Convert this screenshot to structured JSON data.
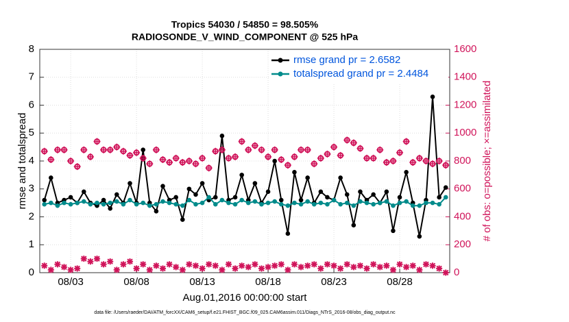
{
  "chart_data": {
    "type": "line",
    "title": "Tropics 54030 / 54850 = 98.505%",
    "subtitle": "RADIOSONDE_V_WIND_COMPONENT @ 525 hPa",
    "ylabel": "rmse and totalspread",
    "y2label": "# of obs: o=possible; ×=assimilated",
    "xlabel": "Aug.01,2016 00:00:00 start",
    "footnote": "data file: /Users/raeder/DAI/ATM_forcXX/CAM6_setup/f.e21.FHIST_BGC.f09_025.CAM6assim.011/Diags_NTrS_2016-08/obs_diag_output.nc",
    "legend": "upper right",
    "x": [
      0,
      0.5,
      1,
      1.5,
      2,
      2.5,
      3,
      3.5,
      4,
      4.5,
      5,
      5.5,
      6,
      6.5,
      7,
      7.5,
      8,
      8.5,
      9,
      9.5,
      10,
      10.5,
      11,
      11.5,
      12,
      12.5,
      13,
      13.5,
      14,
      14.5,
      15,
      15.5,
      16,
      16.5,
      17,
      17.5,
      18,
      18.5,
      19,
      19.5,
      20,
      20.5,
      21,
      21.5,
      22,
      22.5,
      23,
      23.5,
      24,
      24.5,
      25,
      25.5,
      26,
      26.5,
      27,
      27.5,
      28,
      28.5,
      29,
      29.5,
      30,
      30.5
    ],
    "xlim": [
      -0.35,
      30.8
    ],
    "xticks": [
      {
        "value": 2,
        "label": "08/03"
      },
      {
        "value": 7,
        "label": "08/08"
      },
      {
        "value": 12,
        "label": "08/13"
      },
      {
        "value": 17,
        "label": "08/18"
      },
      {
        "value": 22,
        "label": "08/23"
      },
      {
        "value": 27,
        "label": "08/28"
      }
    ],
    "ylim": [
      0,
      8
    ],
    "yticks": [
      0,
      1,
      2,
      3,
      4,
      5,
      6,
      7,
      8
    ],
    "y2lim": [
      0,
      1600
    ],
    "y2ticks": [
      0,
      200,
      400,
      600,
      800,
      1000,
      1200,
      1400,
      1600
    ],
    "series": [
      {
        "name": "rmse grand pr = 2.6582",
        "color": "#000000",
        "marker": "o",
        "line": true,
        "values": [
          2.6,
          3.4,
          2.5,
          2.6,
          2.7,
          2.5,
          2.9,
          2.5,
          2.4,
          2.6,
          2.3,
          2.8,
          2.5,
          3.2,
          2.5,
          4.4,
          2.5,
          2.2,
          3.1,
          2.6,
          2.7,
          1.9,
          3.0,
          2.8,
          3.2,
          2.6,
          2.7,
          4.9,
          2.6,
          2.7,
          3.5,
          2.6,
          3.2,
          2.5,
          2.9,
          4.0,
          2.6,
          1.4,
          3.6,
          2.6,
          3.4,
          2.5,
          2.9,
          2.7,
          2.6,
          3.4,
          2.8,
          1.7,
          2.9,
          2.6,
          2.8,
          2.5,
          2.9,
          1.5,
          2.7,
          3.6,
          2.5,
          1.3,
          2.6,
          6.3,
          2.7,
          3.05
        ]
      },
      {
        "name": "totalspread grand pr = 2.4484",
        "color": "#008b8b",
        "marker": "o",
        "line": true,
        "values": [
          2.45,
          2.5,
          2.4,
          2.5,
          2.45,
          2.5,
          2.55,
          2.45,
          2.5,
          2.45,
          2.5,
          2.55,
          2.45,
          2.6,
          2.45,
          2.5,
          2.4,
          2.45,
          2.55,
          2.5,
          2.45,
          2.4,
          2.6,
          2.45,
          2.5,
          2.7,
          2.45,
          2.6,
          2.5,
          2.45,
          2.6,
          2.5,
          2.55,
          2.45,
          2.5,
          2.55,
          2.45,
          2.4,
          2.5,
          2.45,
          2.55,
          2.45,
          2.5,
          2.45,
          2.6,
          2.45,
          2.5,
          2.4,
          2.55,
          2.5,
          2.45,
          2.5,
          2.55,
          2.4,
          2.5,
          2.55,
          2.4,
          2.4,
          2.5,
          2.5,
          2.45,
          2.7
        ]
      },
      {
        "color": "#d0145a",
        "marker": "o",
        "axis": "y2",
        "values": [
          870,
          810,
          880,
          880,
          800,
          760,
          880,
          830,
          940,
          880,
          880,
          900,
          870,
          840,
          860,
          820,
          780,
          880,
          810,
          790,
          820,
          790,
          800,
          780,
          820,
          750,
          870,
          880,
          820,
          830,
          940,
          880,
          910,
          880,
          830,
          880,
          810,
          770,
          830,
          880,
          880,
          780,
          820,
          850,
          900,
          840,
          950,
          930,
          890,
          820,
          820,
          880,
          790,
          800,
          860,
          940,
          790,
          820,
          800,
          780,
          800,
          770
        ]
      },
      {
        "color": "#d0145a",
        "marker": "x",
        "axis": "y2",
        "values": [
          50,
          20,
          60,
          40,
          20,
          30,
          100,
          80,
          100,
          60,
          80,
          20,
          60,
          80,
          30,
          60,
          20,
          50,
          30,
          60,
          40,
          20,
          60,
          50,
          30,
          60,
          50,
          20,
          60,
          30,
          50,
          40,
          60,
          30,
          40,
          50,
          60,
          20,
          60,
          40,
          50,
          60,
          30,
          60,
          50,
          30,
          60,
          40,
          50,
          30,
          60,
          40,
          50,
          20,
          60,
          40,
          50,
          20,
          60,
          50,
          30,
          0
        ]
      }
    ]
  }
}
